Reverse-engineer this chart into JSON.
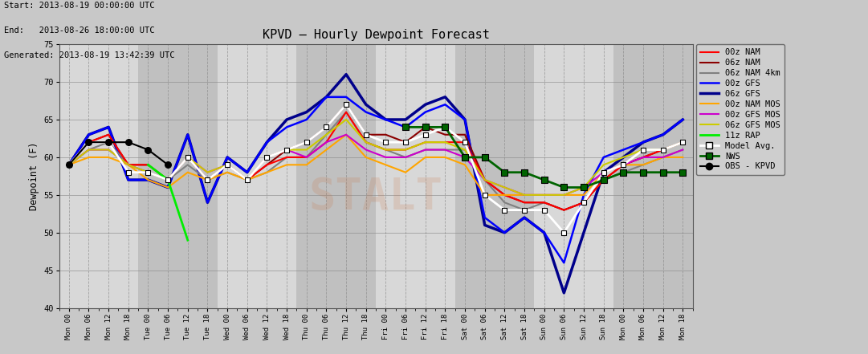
{
  "title": "KPVD – Hourly Dewpoint Forecast",
  "header_line1": "Start: 2013-08-19 00:00:00 UTC",
  "header_line2": "End:   2013-08-26 18:00:00 UTC",
  "header_line3": "Generated: 2013-08-19 13:42:39 UTC",
  "ylabel": "Dewpoint (F)",
  "ylim": [
    40,
    75
  ],
  "yticks": [
    40,
    45,
    50,
    55,
    60,
    65,
    70,
    75
  ],
  "bg_color": "#c8c8c8",
  "plot_bg_light": "#d8d8d8",
  "plot_bg_dark": "#c0c0c0",
  "x_labels": [
    "Mon 00",
    "Mon 06",
    "Mon 12",
    "Mon 18",
    "Tue 00",
    "Tue 06",
    "Tue 12",
    "Tue 18",
    "Wed 00",
    "Wed 06",
    "Wed 12",
    "Wed 18",
    "Thu 00",
    "Thu 06",
    "Thu 12",
    "Thu 18",
    "Fri 00",
    "Fri 06",
    "Fri 12",
    "Fri 18",
    "Sat 00",
    "Sat 06",
    "Sat 12",
    "Sat 18",
    "Sun 00",
    "Sun 06",
    "Sun 12",
    "Sun 18",
    "Mon 00",
    "Mon 06",
    "Mon 12",
    "Mon 18"
  ],
  "n_xticks": 32,
  "series": {
    "00z_NAM": {
      "color": "#ff0000",
      "lw": 1.5,
      "values": [
        59,
        62,
        63,
        59,
        59,
        57,
        60,
        57,
        59,
        57,
        59,
        60,
        60,
        62,
        66,
        62,
        61,
        61,
        62,
        62,
        62,
        57,
        55,
        54,
        54,
        53,
        54,
        57,
        59,
        60,
        61,
        62
      ]
    },
    "06z_NAM": {
      "color": "#8b0000",
      "lw": 1.5,
      "values": [
        59,
        62,
        63,
        59,
        59,
        57,
        60,
        57,
        59,
        57,
        59,
        61,
        62,
        64,
        67,
        63,
        63,
        62,
        64,
        63,
        63,
        57,
        55,
        54,
        54,
        53,
        54,
        57,
        59,
        60,
        61,
        62
      ]
    },
    "06z_NAM_4km": {
      "color": "#808080",
      "lw": 1.5,
      "values": [
        59,
        61,
        62,
        59,
        58,
        57,
        59,
        57,
        58,
        57,
        58,
        60,
        60,
        63,
        66,
        62,
        61,
        60,
        61,
        61,
        61,
        57,
        54,
        53,
        54,
        53,
        54,
        57,
        58,
        59,
        60,
        61
      ]
    },
    "00z_GFS": {
      "color": "#0000ff",
      "lw": 1.8,
      "values": [
        59,
        63,
        64,
        57,
        57,
        56,
        63,
        54,
        60,
        58,
        62,
        64,
        65,
        68,
        68,
        66,
        65,
        64,
        66,
        67,
        65,
        52,
        50,
        52,
        50,
        46,
        55,
        60,
        61,
        62,
        63,
        65
      ]
    },
    "06z_GFS": {
      "color": "#00008b",
      "lw": 2.5,
      "values": [
        59,
        63,
        64,
        57,
        57,
        56,
        63,
        54,
        60,
        58,
        62,
        65,
        66,
        68,
        71,
        67,
        65,
        65,
        67,
        68,
        65,
        51,
        50,
        52,
        50,
        42,
        50,
        58,
        60,
        62,
        63,
        65
      ]
    },
    "00z_NAM_MOS": {
      "color": "#ffa500",
      "lw": 1.5,
      "values": [
        59,
        60,
        60,
        59,
        57,
        56,
        58,
        57,
        58,
        57,
        58,
        59,
        59,
        61,
        63,
        60,
        59,
        58,
        60,
        60,
        59,
        55,
        55,
        55,
        55,
        55,
        55,
        58,
        59,
        59,
        60,
        60
      ]
    },
    "00z_GFS_MOS": {
      "color": "#cc00cc",
      "lw": 1.5,
      "values": [
        59,
        61,
        61,
        59,
        58,
        57,
        60,
        58,
        59,
        57,
        60,
        61,
        60,
        62,
        63,
        61,
        60,
        60,
        61,
        61,
        60,
        57,
        56,
        55,
        55,
        55,
        56,
        58,
        59,
        60,
        60,
        61
      ]
    },
    "06z_GFS_MOS": {
      "color": "#cccc00",
      "lw": 1.5,
      "values": [
        59,
        61,
        61,
        59,
        58,
        57,
        60,
        58,
        59,
        57,
        60,
        61,
        61,
        63,
        65,
        62,
        61,
        61,
        62,
        62,
        61,
        57,
        56,
        55,
        55,
        55,
        56,
        59,
        60,
        61,
        61,
        62
      ]
    },
    "11z_RAP": {
      "color": "#00ee00",
      "lw": 2.0,
      "values": [
        null,
        null,
        null,
        null,
        59,
        57,
        49,
        null,
        null,
        null,
        null,
        null,
        null,
        null,
        null,
        null,
        null,
        null,
        null,
        null,
        null,
        null,
        null,
        null,
        null,
        null,
        null,
        null,
        null,
        null,
        null,
        null
      ]
    },
    "model_avg": {
      "color": "#ffffff",
      "lw": 2.0,
      "marker": "s",
      "values": [
        59,
        62,
        62,
        58,
        58,
        57,
        60,
        57,
        59,
        57,
        60,
        61,
        62,
        64,
        67,
        63,
        62,
        62,
        63,
        64,
        62,
        55,
        53,
        53,
        53,
        50,
        54,
        58,
        59,
        61,
        61,
        62
      ]
    },
    "NWS": {
      "color": "#006400",
      "lw": 2.0,
      "marker": "s",
      "values": [
        null,
        null,
        null,
        null,
        null,
        null,
        null,
        null,
        null,
        null,
        null,
        null,
        null,
        null,
        null,
        null,
        null,
        64,
        64,
        64,
        60,
        60,
        58,
        58,
        57,
        56,
        56,
        57,
        58,
        58,
        58,
        58
      ]
    },
    "OBS_KPVD": {
      "color": "#000000",
      "lw": 1.5,
      "marker": "o",
      "values": [
        59,
        62,
        62,
        62,
        61,
        59,
        null,
        null,
        null,
        null,
        null,
        null,
        null,
        null,
        null,
        null,
        null,
        null,
        null,
        null,
        null,
        null,
        null,
        null,
        null,
        null,
        null,
        null,
        null,
        null,
        null,
        null
      ]
    }
  }
}
